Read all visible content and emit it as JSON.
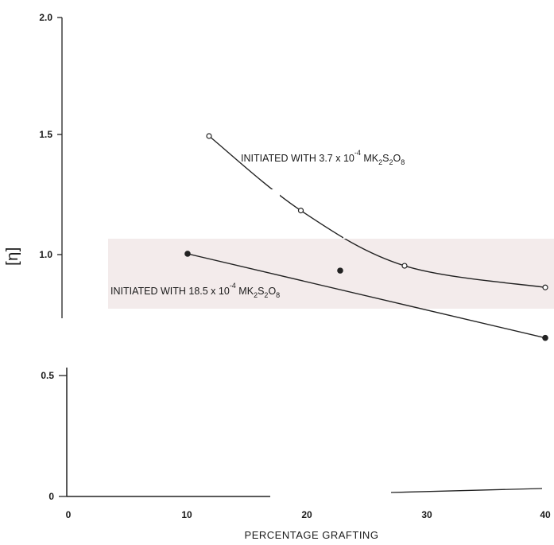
{
  "chart_data": {
    "type": "line",
    "xlabel": "PERCENTAGE  GRAFTING",
    "ylabel": "[η]",
    "xlim": [
      0,
      40
    ],
    "ylim": [
      0,
      2.0
    ],
    "x_ticks": [
      "0",
      "10",
      "20",
      "30",
      "40"
    ],
    "y_ticks": [
      "0",
      "0.5",
      "1.0",
      "1.5",
      "2.0"
    ],
    "series": [
      {
        "name": "INITIATED WITH 3.7 x 10⁻⁴ MK₂S₂O₈",
        "marker": "open-circle",
        "x": [
          11.8,
          19.5,
          28.2,
          40.0
        ],
        "y": [
          1.5,
          1.19,
          0.96,
          0.87
        ],
        "label": {
          "pre": "INITIATED WITH 3.7 x 10",
          "sup": "-4",
          "mid": " MK",
          "sub1": "2",
          "s": "S",
          "sub2": "2",
          "o": "O",
          "sub3": "8"
        }
      },
      {
        "name": "INITIATED WITH 18.5 x 10⁻⁴ MK₂S₂O₈",
        "marker": "filled-circle",
        "x": [
          10.0,
          22.8,
          40.0
        ],
        "y": [
          1.01,
          0.94,
          0.66
        ],
        "label": {
          "pre": "INITIATED WITH 18.5 x 10",
          "sup": "-4",
          "mid": " MK",
          "sub1": "2",
          "s": "S",
          "sub2": "2",
          "o": "O",
          "sub3": "8"
        }
      }
    ],
    "grid": false
  }
}
